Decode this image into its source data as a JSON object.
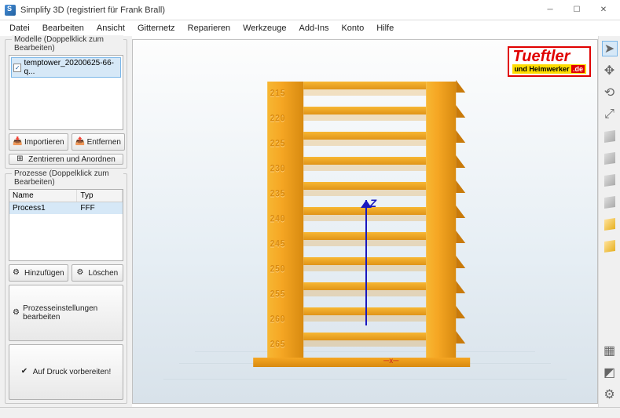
{
  "window": {
    "title": "Simplify 3D (registriert für Frank Brall)"
  },
  "menu": [
    "Datei",
    "Bearbeiten",
    "Ansicht",
    "Gitternetz",
    "Reparieren",
    "Werkzeuge",
    "Add-Ins",
    "Konto",
    "Hilfe"
  ],
  "models": {
    "group_title": "Modelle (Doppelklick zum Bearbeiten)",
    "items": [
      {
        "name": "temptower_20200625-66-q...",
        "checked": true
      }
    ],
    "import_btn": "Importieren",
    "remove_btn": "Entfernen",
    "center_btn": "Zentrieren und Anordnen"
  },
  "processes": {
    "group_title": "Prozesse (Doppelklick zum Bearbeiten)",
    "col_name": "Name",
    "col_type": "Typ",
    "rows": [
      {
        "name": "Process1",
        "type": "FFF"
      }
    ],
    "add_btn": "Hinzufügen",
    "delete_btn": "Löschen",
    "edit_btn": "Prozesseinstellungen bearbeiten",
    "prepare_btn": "Auf Druck vorbereiten!"
  },
  "watermark": {
    "line1": "Tueftler",
    "line2_a": "und Heimwerker",
    "line2_b": ".de"
  },
  "viewport": {
    "z_label": "Z",
    "temperatures": [
      "215",
      "220",
      "225",
      "230",
      "235",
      "240",
      "245",
      "250",
      "255",
      "260",
      "265"
    ],
    "model_colors": {
      "base": "#f5a623",
      "shadow": "#d88a10",
      "highlight": "#f7b733"
    },
    "axis_colors": {
      "z": "#1818c0",
      "x": "#cc2020"
    },
    "bg_gradient": [
      "#fdfdfd",
      "#e6eef4",
      "#d8e2ea"
    ]
  },
  "right_tools": [
    "cursor",
    "move",
    "rotate",
    "scale",
    "view-top",
    "view-front",
    "view-side",
    "view-iso",
    "wireframe",
    "solid",
    "support",
    "layer",
    "settings"
  ]
}
